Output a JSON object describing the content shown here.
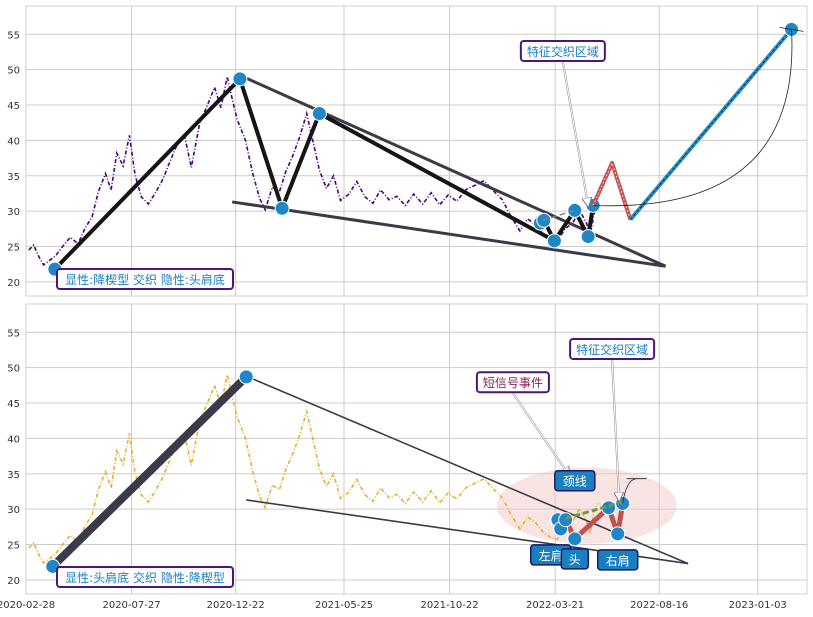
{
  "chart_data": [
    {
      "type": "line",
      "panel": "top",
      "ylim": [
        18,
        59
      ],
      "yticks": [
        20,
        25,
        30,
        35,
        40,
        45,
        50,
        55
      ],
      "price_color": "#4b0082",
      "price_series": [
        [
          "2020-03-03",
          24.5
        ],
        [
          "2020-03-10",
          25.2
        ],
        [
          "2020-03-17",
          23.6
        ],
        [
          "2020-03-24",
          22.4
        ],
        [
          "2020-03-31",
          22.9
        ],
        [
          "2020-04-10",
          23.7
        ],
        [
          "2020-04-20",
          25.0
        ],
        [
          "2020-05-01",
          26.3
        ],
        [
          "2020-05-12",
          25.4
        ],
        [
          "2020-05-22",
          27.6
        ],
        [
          "2020-06-01",
          29.2
        ],
        [
          "2020-06-10",
          32.8
        ],
        [
          "2020-06-20",
          35.3
        ],
        [
          "2020-06-28",
          33.0
        ],
        [
          "2020-07-06",
          38.2
        ],
        [
          "2020-07-15",
          36.4
        ],
        [
          "2020-07-24",
          40.7
        ],
        [
          "2020-08-01",
          35.1
        ],
        [
          "2020-08-10",
          32.0
        ],
        [
          "2020-08-20",
          31.0
        ],
        [
          "2020-08-30",
          32.6
        ],
        [
          "2020-09-10",
          34.6
        ],
        [
          "2020-09-20",
          37.1
        ],
        [
          "2020-10-01",
          39.7
        ],
        [
          "2020-10-10",
          40.8
        ],
        [
          "2020-10-20",
          36.2
        ],
        [
          "2020-11-01",
          42.5
        ],
        [
          "2020-11-12",
          45.0
        ],
        [
          "2020-11-22",
          47.5
        ],
        [
          "2020-12-01",
          44.6
        ],
        [
          "2020-12-10",
          49.0
        ],
        [
          "2020-12-16",
          46.3
        ],
        [
          "2020-12-24",
          43.0
        ],
        [
          "2021-01-05",
          40.0
        ],
        [
          "2021-01-15",
          35.4
        ],
        [
          "2021-01-25",
          31.8
        ],
        [
          "2021-02-02",
          30.2
        ],
        [
          "2021-02-12",
          33.4
        ],
        [
          "2021-02-22",
          32.7
        ],
        [
          "2021-03-03",
          35.5
        ],
        [
          "2021-03-13",
          37.8
        ],
        [
          "2021-03-23",
          40.5
        ],
        [
          "2021-04-02",
          43.8
        ],
        [
          "2021-04-10",
          40.2
        ],
        [
          "2021-04-20",
          35.8
        ],
        [
          "2021-04-30",
          33.2
        ],
        [
          "2021-05-10",
          35.0
        ],
        [
          "2021-05-20",
          31.5
        ],
        [
          "2021-06-01",
          32.4
        ],
        [
          "2021-06-12",
          34.2
        ],
        [
          "2021-06-24",
          32.0
        ],
        [
          "2021-07-05",
          31.1
        ],
        [
          "2021-07-16",
          33.0
        ],
        [
          "2021-07-28",
          31.6
        ],
        [
          "2021-08-08",
          32.1
        ],
        [
          "2021-08-20",
          30.8
        ],
        [
          "2021-09-01",
          32.4
        ],
        [
          "2021-09-14",
          31.0
        ],
        [
          "2021-09-26",
          32.6
        ],
        [
          "2021-10-08",
          30.9
        ],
        [
          "2021-10-20",
          32.3
        ],
        [
          "2021-11-01",
          31.4
        ],
        [
          "2021-11-15",
          33.1
        ],
        [
          "2021-11-28",
          33.7
        ],
        [
          "2021-12-10",
          34.3
        ],
        [
          "2021-12-22",
          33.0
        ],
        [
          "2022-01-05",
          31.6
        ],
        [
          "2022-01-18",
          29.1
        ],
        [
          "2022-01-30",
          27.2
        ],
        [
          "2022-02-10",
          28.9
        ],
        [
          "2022-02-22",
          28.0
        ],
        [
          "2022-03-05",
          26.6
        ],
        [
          "2022-03-15",
          26.0
        ],
        [
          "2022-03-24",
          25.7
        ],
        [
          "2022-04-04",
          27.5
        ],
        [
          "2022-04-15",
          28.3
        ],
        [
          "2022-04-25",
          30.1
        ],
        [
          "2022-05-05",
          28.2
        ],
        [
          "2022-05-10",
          26.5
        ],
        [
          "2022-05-15",
          29.5
        ],
        [
          "2022-05-20",
          30.8
        ]
      ],
      "patterns": [
        {
          "name": "falling_wedge",
          "color": "#3a3a48",
          "lines": [
            [
              [
                "2020-12-28",
                49.2
              ],
              [
                "2022-08-25",
                22.2
              ]
            ],
            [
              [
                "2020-12-17",
                31.3
              ],
              [
                "2022-08-25",
                22.2
              ]
            ]
          ]
        },
        {
          "name": "zigzag",
          "color": "#151515",
          "points": [
            [
              "2020-04-09",
              21.8
            ],
            [
              "2020-12-28",
              48.7
            ],
            [
              "2021-02-26",
              30.4
            ],
            [
              "2021-04-20",
              43.8
            ],
            [
              "2022-03-20",
              25.8
            ]
          ]
        },
        {
          "name": "head_shoulders_markers",
          "color": "#151515",
          "points": [
            [
              "2022-02-28",
              28.3
            ],
            [
              "2022-03-05",
              28.7
            ],
            [
              "2022-03-20",
              25.8
            ],
            [
              "2022-04-18",
              30.1
            ],
            [
              "2022-05-07",
              26.4
            ],
            [
              "2022-05-14",
              30.8
            ]
          ]
        },
        {
          "name": "neckline",
          "color": "#888866",
          "points": [
            [
              "2022-03-03",
              28.7
            ],
            [
              "2022-04-18",
              30.1
            ]
          ]
        },
        {
          "name": "forecast_red",
          "color": "#c0524e",
          "points": [
            [
              "2022-05-14",
              30.8
            ],
            [
              "2022-06-10",
              36.8
            ],
            [
              "2022-07-06",
              28.8
            ]
          ]
        },
        {
          "name": "forecast_blue",
          "color": "#2a8cc4",
          "points": [
            [
              "2022-07-06",
              28.8
            ],
            [
              "2023-02-20",
              55.7
            ]
          ]
        }
      ],
      "callouts": [
        {
          "text": "特征交织区域",
          "color": "#1a7fbf",
          "target": [
            "2022-05-07",
            30.5
          ]
        }
      ],
      "label": "显性:降楔型 交织 隐性:头肩底"
    },
    {
      "type": "line",
      "panel": "bottom",
      "ylim": [
        18,
        59
      ],
      "yticks": [
        20,
        25,
        30,
        35,
        40,
        45,
        50,
        55
      ],
      "x_ticks": [
        "2020-02-28",
        "2020-07-27",
        "2020-12-22",
        "2021-05-25",
        "2021-10-22",
        "2022-03-21",
        "2022-08-16",
        "2023-01-03"
      ],
      "price_color": "#e8b030",
      "price_series": [
        [
          "2020-03-03",
          24.5
        ],
        [
          "2020-03-10",
          25.2
        ],
        [
          "2020-03-17",
          23.6
        ],
        [
          "2020-03-24",
          22.4
        ],
        [
          "2020-03-31",
          22.9
        ],
        [
          "2020-04-10",
          23.7
        ],
        [
          "2020-04-20",
          25.0
        ],
        [
          "2020-05-01",
          26.3
        ],
        [
          "2020-05-12",
          25.4
        ],
        [
          "2020-05-22",
          27.6
        ],
        [
          "2020-06-01",
          29.2
        ],
        [
          "2020-06-10",
          32.8
        ],
        [
          "2020-06-20",
          35.3
        ],
        [
          "2020-06-28",
          33.0
        ],
        [
          "2020-07-06",
          38.2
        ],
        [
          "2020-07-15",
          36.4
        ],
        [
          "2020-07-24",
          40.7
        ],
        [
          "2020-08-01",
          35.1
        ],
        [
          "2020-08-10",
          32.0
        ],
        [
          "2020-08-20",
          31.0
        ],
        [
          "2020-08-30",
          32.6
        ],
        [
          "2020-09-10",
          34.6
        ],
        [
          "2020-09-20",
          37.1
        ],
        [
          "2020-10-01",
          39.7
        ],
        [
          "2020-10-10",
          40.8
        ],
        [
          "2020-10-20",
          36.2
        ],
        [
          "2020-11-01",
          42.5
        ],
        [
          "2020-11-12",
          45.0
        ],
        [
          "2020-11-22",
          47.5
        ],
        [
          "2020-12-01",
          44.6
        ],
        [
          "2020-12-10",
          49.0
        ],
        [
          "2020-12-16",
          46.3
        ],
        [
          "2020-12-24",
          43.0
        ],
        [
          "2021-01-05",
          40.0
        ],
        [
          "2021-01-15",
          35.4
        ],
        [
          "2021-01-25",
          31.8
        ],
        [
          "2021-02-02",
          30.2
        ],
        [
          "2021-02-12",
          33.4
        ],
        [
          "2021-02-22",
          32.7
        ],
        [
          "2021-03-03",
          35.5
        ],
        [
          "2021-03-13",
          37.8
        ],
        [
          "2021-03-23",
          40.5
        ],
        [
          "2021-04-02",
          43.8
        ],
        [
          "2021-04-10",
          40.2
        ],
        [
          "2021-04-20",
          35.8
        ],
        [
          "2021-04-30",
          33.2
        ],
        [
          "2021-05-10",
          35.0
        ],
        [
          "2021-05-20",
          31.5
        ],
        [
          "2021-06-01",
          32.4
        ],
        [
          "2021-06-12",
          34.2
        ],
        [
          "2021-06-24",
          32.0
        ],
        [
          "2021-07-05",
          31.1
        ],
        [
          "2021-07-16",
          33.0
        ],
        [
          "2021-07-28",
          31.6
        ],
        [
          "2021-08-08",
          32.1
        ],
        [
          "2021-08-20",
          30.8
        ],
        [
          "2021-09-01",
          32.4
        ],
        [
          "2021-09-14",
          31.0
        ],
        [
          "2021-09-26",
          32.6
        ],
        [
          "2021-10-08",
          30.9
        ],
        [
          "2021-10-20",
          32.3
        ],
        [
          "2021-11-01",
          31.4
        ],
        [
          "2021-11-15",
          33.1
        ],
        [
          "2021-11-28",
          33.7
        ],
        [
          "2021-12-10",
          34.3
        ],
        [
          "2021-12-22",
          33.0
        ],
        [
          "2022-01-05",
          31.6
        ],
        [
          "2022-01-18",
          29.1
        ],
        [
          "2022-01-30",
          27.2
        ],
        [
          "2022-02-10",
          28.9
        ],
        [
          "2022-02-22",
          28.0
        ],
        [
          "2022-03-05",
          26.6
        ],
        [
          "2022-03-15",
          26.0
        ],
        [
          "2022-03-24",
          25.7
        ],
        [
          "2022-04-04",
          27.5
        ],
        [
          "2022-04-15",
          28.3
        ],
        [
          "2022-04-25",
          30.1
        ],
        [
          "2022-05-05",
          28.2
        ],
        [
          "2022-05-10",
          26.5
        ],
        [
          "2022-05-15",
          29.5
        ],
        [
          "2022-05-20",
          30.8
        ]
      ],
      "patterns": [
        {
          "name": "falling_wedge",
          "color": "#3a3a48",
          "lines": [
            [
              [
                "2021-01-06",
                48.8
              ],
              [
                "2022-09-26",
                22.3
              ]
            ],
            [
              [
                "2021-01-06",
                31.3
              ],
              [
                "2022-09-26",
                22.3
              ]
            ]
          ]
        },
        {
          "name": "impulse",
          "color": "#3a3a48",
          "points": [
            [
              "2020-04-06",
              21.9
            ],
            [
              "2021-01-06",
              48.7
            ]
          ]
        },
        {
          "name": "head_shoulders",
          "color": "#c0524e",
          "points": [
            [
              "2022-03-25",
              28.5
            ],
            [
              "2022-03-29",
              27.2
            ],
            [
              "2022-04-05",
              28.5
            ],
            [
              "2022-04-18",
              25.8
            ],
            [
              "2022-06-05",
              30.2
            ],
            [
              "2022-06-18",
              26.5
            ],
            [
              "2022-06-25",
              30.8
            ]
          ]
        },
        {
          "name": "neckline",
          "color": "#6a9a50",
          "points": [
            [
              "2022-04-05",
              28.7
            ],
            [
              "2022-06-25",
              31.0
            ]
          ]
        }
      ],
      "annotations": [
        {
          "text": "颈线",
          "color": "#ffffff",
          "bg": "#1a7fbf",
          "anchor": [
            "2022-04-18",
            30.2
          ]
        },
        {
          "text": "左肩",
          "color": "#ffffff",
          "bg": "#1a7fbf",
          "anchor": [
            "2022-03-29",
            27.2
          ]
        },
        {
          "text": "头",
          "color": "#ffffff",
          "bg": "#1a7fbf",
          "anchor": [
            "2022-04-18",
            25.8
          ]
        },
        {
          "text": "右肩",
          "color": "#ffffff",
          "bg": "#1a7fbf",
          "anchor": [
            "2022-06-18",
            26.5
          ]
        }
      ],
      "callouts": [
        {
          "text": "短信号事件",
          "color": "#8b2252",
          "target": [
            "2022-04-10",
            34.5
          ]
        },
        {
          "text": "特征交织区域",
          "color": "#1a7fbf",
          "target": [
            "2022-06-20",
            31.0
          ]
        }
      ],
      "label": "显性:头肩底 交织 隐性:降楔型"
    }
  ]
}
